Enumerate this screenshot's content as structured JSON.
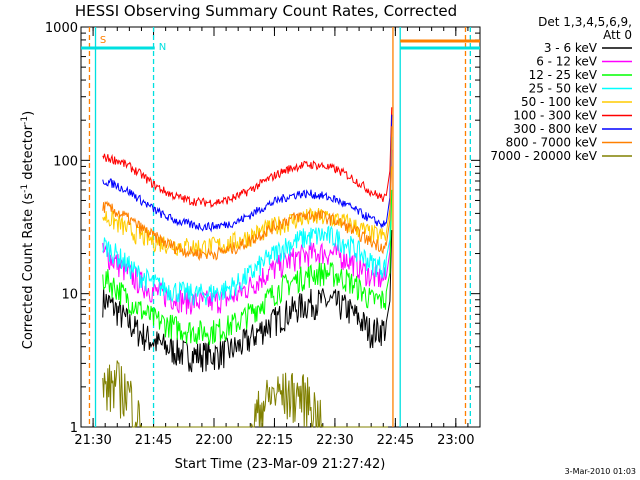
{
  "chart_data": {
    "type": "line",
    "title": "HESSI Observing Summary Count Rates, Corrected",
    "xlabel": "Start Time (23-Mar-09 21:27:42)",
    "ylabel_main": "Corrected Count Rate (s",
    "ylabel_sup1": "-1",
    "ylabel_mid": " detector",
    "ylabel_sup2": "-1",
    "ylabel_end": ")",
    "yscale": "log",
    "ylim": [
      1,
      1000
    ],
    "xlim_minutes": [
      21.45,
      23.1
    ],
    "x_ticks": [
      {
        "m": 21.5,
        "label": "21:30"
      },
      {
        "m": 21.75,
        "label": "21:45"
      },
      {
        "m": 22.0,
        "label": "22:00"
      },
      {
        "m": 22.25,
        "label": "22:15"
      },
      {
        "m": 22.5,
        "label": "22:30"
      },
      {
        "m": 22.75,
        "label": "22:45"
      },
      {
        "m": 23.0,
        "label": "23:00"
      }
    ],
    "y_ticks": [
      {
        "v": 1,
        "label": "1"
      },
      {
        "v": 10,
        "label": "10"
      },
      {
        "v": 100,
        "label": "100"
      },
      {
        "v": 1000,
        "label": "1000"
      }
    ],
    "legend_header": [
      "Det 1,3,4,5,6,9,",
      "Att 0"
    ],
    "timestamp": "3-Mar-2010 01:03",
    "flags": [
      {
        "label": "S",
        "color": "#ff8000",
        "x_start": 21.48,
        "x_end": 21.52
      },
      {
        "label": "N",
        "color": "#00e0e0",
        "x_start": 21.45,
        "x_end": 21.755
      }
    ],
    "attenuator_bar": {
      "color": "#ff8000",
      "x_start": 22.77,
      "x_end": 23.1
    },
    "night_bar": {
      "color": "#00e0e0",
      "x_start": 22.77,
      "x_end": 23.1
    },
    "vlines": [
      {
        "x": 21.485,
        "color": "#ff8000",
        "style": "dashed"
      },
      {
        "x": 21.51,
        "color": "#00e0e0",
        "style": "solid"
      },
      {
        "x": 21.75,
        "color": "#00e0e0",
        "style": "dashed"
      },
      {
        "x": 22.74,
        "color": "#ff8000",
        "style": "solid"
      },
      {
        "x": 22.77,
        "color": "#00e0e0",
        "style": "solid"
      },
      {
        "x": 23.06,
        "color": "#00e0e0",
        "style": "dashed"
      },
      {
        "x": 23.04,
        "color": "#ff8000",
        "style": "dashed"
      }
    ],
    "series": [
      {
        "name": "3 - 6 keV",
        "color": "#000000",
        "x": [
          21.55,
          21.6,
          21.65,
          21.7,
          21.75,
          21.8,
          21.85,
          21.9,
          21.95,
          22.0,
          22.05,
          22.1,
          22.15,
          22.2,
          22.25,
          22.3,
          22.35,
          22.4,
          22.45,
          22.5,
          22.55,
          22.6,
          22.65,
          22.7
        ],
        "y": [
          9.0,
          7.5,
          6.0,
          5.0,
          4.4,
          4.0,
          3.7,
          3.5,
          3.5,
          3.5,
          3.7,
          4.0,
          4.6,
          5.5,
          6.3,
          7.2,
          8.0,
          8.6,
          8.8,
          8.6,
          7.8,
          6.5,
          5.2,
          5.5
        ]
      },
      {
        "name": "6 - 12 keV",
        "color": "#ff00ff",
        "x": [
          21.55,
          21.6,
          21.65,
          21.7,
          21.75,
          21.8,
          21.85,
          21.9,
          21.95,
          22.0,
          22.05,
          22.1,
          22.15,
          22.2,
          22.25,
          22.3,
          22.35,
          22.4,
          22.45,
          22.5,
          22.55,
          22.6,
          22.65,
          22.7
        ],
        "y": [
          20.0,
          17.0,
          14.0,
          12.0,
          10.5,
          9.8,
          9.2,
          8.8,
          8.7,
          8.8,
          9.2,
          10.0,
          11.5,
          13.5,
          15.5,
          17.5,
          19.0,
          20.0,
          20.5,
          20.0,
          18.5,
          16.0,
          13.5,
          13.0
        ]
      },
      {
        "name": "12 - 25 keV",
        "color": "#00ff00",
        "x": [
          21.55,
          21.6,
          21.65,
          21.7,
          21.75,
          21.8,
          21.85,
          21.9,
          21.95,
          22.0,
          22.05,
          22.1,
          22.15,
          22.2,
          22.25,
          22.3,
          22.35,
          22.4,
          22.45,
          22.5,
          22.55,
          22.6,
          22.65,
          22.7
        ],
        "y": [
          13.0,
          11.0,
          9.0,
          7.5,
          6.5,
          6.0,
          5.6,
          5.3,
          5.2,
          5.3,
          5.6,
          6.2,
          7.2,
          8.6,
          10.2,
          11.8,
          13.0,
          14.0,
          14.5,
          14.0,
          12.8,
          11.0,
          9.0,
          9.0
        ]
      },
      {
        "name": "25 - 50 keV",
        "color": "#00ffff",
        "x": [
          21.55,
          21.6,
          21.65,
          21.7,
          21.75,
          21.8,
          21.85,
          21.9,
          21.95,
          22.0,
          22.05,
          22.1,
          22.15,
          22.2,
          22.25,
          22.3,
          22.35,
          22.4,
          22.45,
          22.5,
          22.55,
          22.6,
          22.65,
          22.7
        ],
        "y": [
          23.0,
          19.5,
          16.0,
          13.5,
          12.0,
          11.0,
          10.5,
          10.0,
          10.0,
          10.2,
          10.8,
          12.0,
          14.0,
          17.0,
          20.0,
          23.0,
          25.5,
          27.0,
          27.5,
          26.5,
          24.0,
          20.5,
          17.0,
          16.0
        ]
      },
      {
        "name": "50 - 100 keV",
        "color": "#ffcc00",
        "x": [
          21.55,
          21.6,
          21.65,
          21.7,
          21.75,
          21.8,
          21.85,
          21.9,
          21.95,
          22.0,
          22.05,
          22.1,
          22.15,
          22.2,
          22.25,
          22.3,
          22.35,
          22.4,
          22.45,
          22.5,
          22.55,
          22.6,
          22.65,
          22.7
        ],
        "y": [
          38.0,
          34.0,
          30.0,
          27.0,
          25.0,
          24.0,
          23.0,
          22.5,
          22.5,
          22.8,
          23.5,
          25.0,
          27.0,
          29.5,
          32.0,
          34.5,
          36.5,
          37.5,
          37.5,
          36.5,
          34.0,
          31.0,
          28.0,
          27.0
        ]
      },
      {
        "name": "100 - 300 keV",
        "color": "#ff0000",
        "x": [
          21.55,
          21.6,
          21.65,
          21.7,
          21.75,
          21.8,
          21.85,
          21.9,
          21.95,
          22.0,
          22.05,
          22.1,
          22.15,
          22.2,
          22.25,
          22.3,
          22.35,
          22.4,
          22.45,
          22.5,
          22.55,
          22.6,
          22.65,
          22.7
        ],
        "y": [
          105.0,
          100.0,
          90.0,
          78.0,
          66.0,
          58.0,
          53.0,
          50.0,
          48.5,
          48.5,
          50.0,
          54.0,
          60.0,
          68.0,
          77.0,
          85.0,
          91.0,
          93.0,
          91.0,
          86.0,
          78.0,
          68.0,
          58.0,
          52.0
        ]
      },
      {
        "name": "300 - 800 keV",
        "color": "#0000ff",
        "x": [
          21.55,
          21.6,
          21.65,
          21.7,
          21.75,
          21.8,
          21.85,
          21.9,
          21.95,
          22.0,
          22.05,
          22.1,
          22.15,
          22.2,
          22.25,
          22.3,
          22.35,
          22.4,
          22.45,
          22.5,
          22.55,
          22.6,
          22.65,
          22.7
        ],
        "y": [
          70.0,
          65.0,
          58.0,
          50.0,
          43.0,
          38.0,
          35.0,
          33.0,
          32.0,
          32.0,
          33.0,
          35.0,
          39.0,
          44.0,
          49.0,
          53.0,
          56.0,
          56.0,
          54.0,
          51.0,
          46.0,
          41.0,
          36.0,
          33.0
        ]
      },
      {
        "name": "800 - 7000 keV",
        "color": "#ff8000",
        "x": [
          21.55,
          21.6,
          21.65,
          21.7,
          21.75,
          21.8,
          21.85,
          21.9,
          21.95,
          22.0,
          22.05,
          22.1,
          22.15,
          22.2,
          22.25,
          22.3,
          22.35,
          22.4,
          22.45,
          22.5,
          22.55,
          22.6,
          22.65,
          22.7
        ],
        "y": [
          45.0,
          41.0,
          36.0,
          31.0,
          27.0,
          24.0,
          22.0,
          20.5,
          20.0,
          20.0,
          21.0,
          22.5,
          25.0,
          28.5,
          32.0,
          35.5,
          38.0,
          39.0,
          38.0,
          35.5,
          32.0,
          28.0,
          24.5,
          22.5
        ]
      },
      {
        "name": "7000 - 20000 keV",
        "color": "#808000",
        "x": [
          21.55,
          21.6,
          21.65,
          21.7,
          21.75,
          21.8,
          21.85,
          21.9,
          21.95,
          22.0,
          22.05,
          22.1,
          22.15,
          22.2,
          22.25,
          22.3,
          22.35,
          22.4,
          22.45,
          22.5,
          22.55,
          22.6,
          22.65,
          22.7
        ],
        "y": [
          2.0,
          2.2,
          1.8,
          1.0,
          1.0,
          1.0,
          1.0,
          1.0,
          1.0,
          1.0,
          1.0,
          1.0,
          1.0,
          1.5,
          1.8,
          1.8,
          1.8,
          1.6,
          1.0,
          1.0,
          1.0,
          1.0,
          1.0,
          1.0
        ]
      }
    ]
  }
}
